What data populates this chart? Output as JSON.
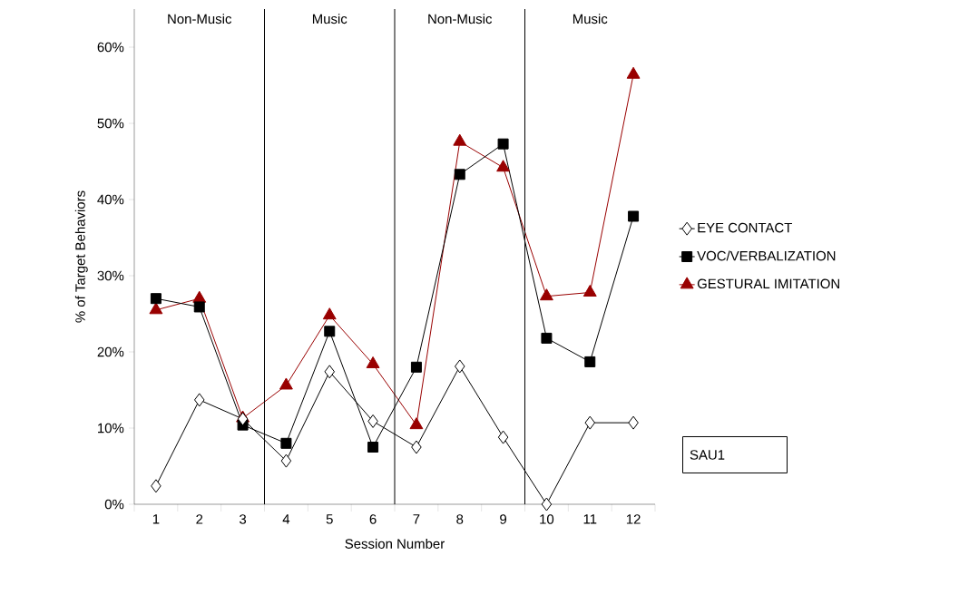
{
  "chart_data": {
    "type": "line",
    "xlabel": "Session Number",
    "ylabel": "% of Target Behaviors",
    "x": [
      1,
      2,
      3,
      4,
      5,
      6,
      7,
      8,
      9,
      10,
      11,
      12
    ],
    "xlim": [
      0.5,
      12.5
    ],
    "xticks": [
      1,
      2,
      3,
      4,
      5,
      6,
      7,
      8,
      9,
      10,
      11,
      12
    ],
    "ylim": [
      0,
      65
    ],
    "yticks": [
      {
        "value": 0,
        "label": "0%"
      },
      {
        "value": 10,
        "label": "10%"
      },
      {
        "value": 20,
        "label": "20%"
      },
      {
        "value": 30,
        "label": "30%"
      },
      {
        "value": 40,
        "label": "40%"
      },
      {
        "value": 50,
        "label": "50%"
      },
      {
        "value": 60,
        "label": "60%"
      }
    ],
    "series": [
      {
        "name": "EYE CONTACT",
        "color": "#000000",
        "marker": "diamond",
        "values": [
          2.4,
          13.7,
          11.2,
          5.7,
          17.4,
          10.9,
          7.5,
          18.1,
          8.8,
          0,
          10.7,
          10.7
        ]
      },
      {
        "name": "VOC/VERBALIZATION",
        "color": "#000000",
        "marker": "square",
        "values": [
          27.0,
          25.9,
          10.4,
          8.0,
          22.7,
          7.5,
          18.0,
          43.3,
          47.3,
          21.8,
          18.7,
          37.8
        ]
      },
      {
        "name": "GESTURAL IMITATION",
        "color": "#990000",
        "marker": "triangle",
        "values": [
          25.5,
          27.0,
          11.3,
          15.6,
          24.8,
          18.4,
          10.4,
          47.6,
          44.2,
          27.3,
          27.8,
          56.4
        ]
      }
    ],
    "ref_lines": [
      {
        "axis": "x",
        "value": 3.5,
        "color": "#000000"
      },
      {
        "axis": "x",
        "value": 6.5,
        "color": "#000000"
      },
      {
        "axis": "x",
        "value": 9.5,
        "color": "#000000"
      }
    ],
    "annotations": [
      "Non-Music",
      "Music",
      "Non-Music",
      "Music",
      "SAU1"
    ],
    "legend": "right",
    "grid": false
  }
}
